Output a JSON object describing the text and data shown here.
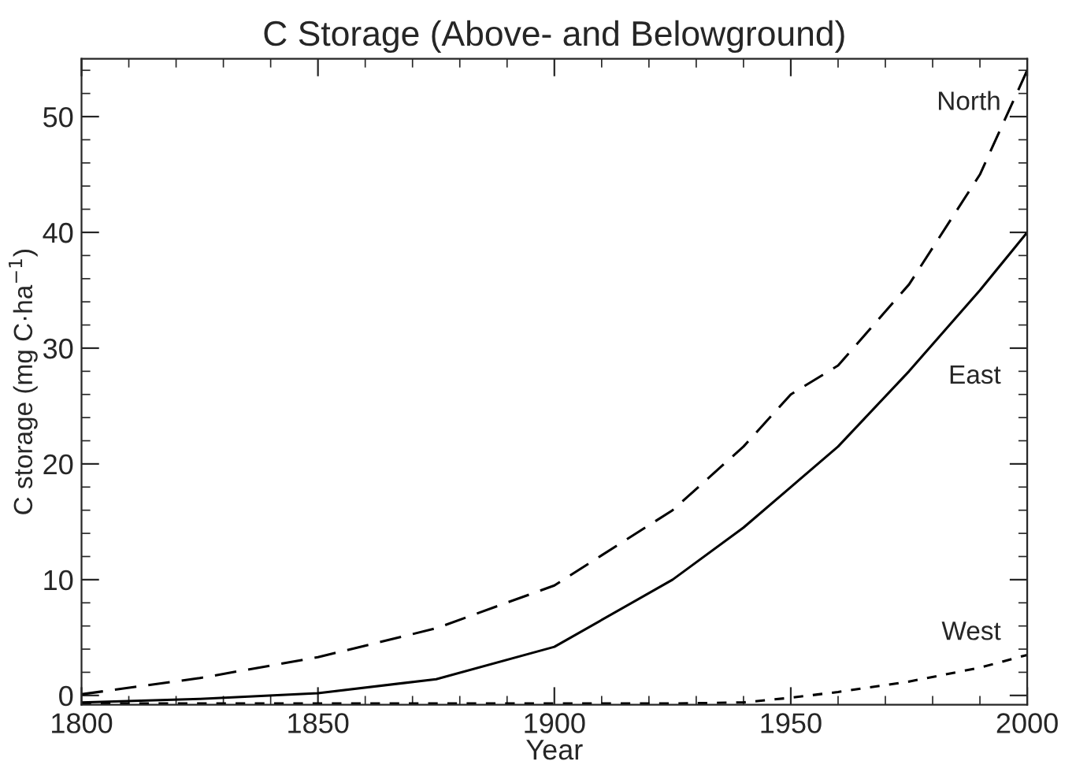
{
  "chart_data": {
    "type": "line",
    "title": "C Storage (Above- and Belowground)",
    "xlabel": "Year",
    "ylabel": "C storage (mg C·ha$^{−1}$)",
    "x": [
      1800,
      1825,
      1850,
      1875,
      1900,
      1925,
      1940,
      1950,
      1960,
      1975,
      1990,
      2000
    ],
    "series": [
      {
        "name": "North",
        "color": "#000000",
        "line_style": "dashed",
        "values": [
          0.1,
          1.5,
          3.3,
          5.8,
          9.5,
          16,
          21.5,
          26,
          28.5,
          35.5,
          45,
          54
        ]
      },
      {
        "name": "East",
        "color": "#000000",
        "line_style": "solid",
        "values": [
          -0.6,
          -0.3,
          0.2,
          1.4,
          4.2,
          10,
          14.5,
          18,
          21.5,
          28,
          35,
          40
        ]
      },
      {
        "name": "West",
        "color": "#000000",
        "line_style": "dashed",
        "values": [
          -0.7,
          -0.7,
          -0.7,
          -0.7,
          -0.7,
          -0.7,
          -0.6,
          -0.2,
          0.3,
          1.2,
          2.4,
          3.5
        ]
      }
    ],
    "xlim": [
      1800,
      2000
    ],
    "xticks": [
      1800,
      1850,
      1900,
      1950,
      2000
    ],
    "ylim": [
      -0.8,
      55
    ],
    "yticks": [
      0,
      10,
      20,
      30,
      40,
      50
    ],
    "grid": false,
    "legend": false
  }
}
